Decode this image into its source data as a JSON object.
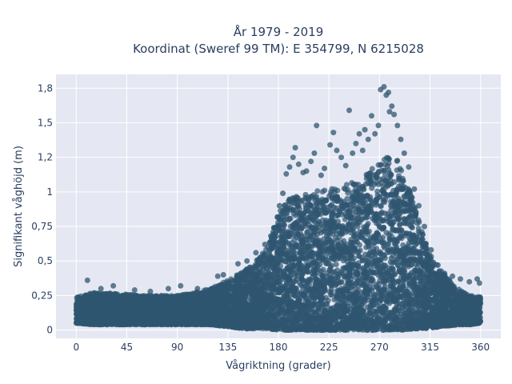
{
  "chart_data": {
    "type": "scatter",
    "title": "År 1979 - 2019",
    "subtitle": "Koordinat (Sweref 99 TM): E 354799, N 6215028",
    "xlabel": "Vågriktning (grader)",
    "ylabel": "Signifikant våghöjd (m)",
    "xlim": [
      -18,
      378
    ],
    "ylim": [
      -0.06,
      1.85
    ],
    "xticks": [
      0,
      45,
      90,
      135,
      180,
      225,
      270,
      315,
      360
    ],
    "xtick_labels": [
      "0",
      "45",
      "90",
      "135",
      "180",
      "225",
      "270",
      "315",
      "360"
    ],
    "yticks": [
      0,
      0.25,
      0.5,
      0.75,
      1,
      1.25,
      1.5,
      1.75
    ],
    "ytick_labels": [
      "0",
      "0,25",
      "0,5",
      "0,75",
      "1",
      "1,2",
      "1,5",
      "1,8"
    ],
    "grid": true,
    "marker_color": "#2f5670",
    "plot_bg": "#e5e8f2",
    "grid_color": "#ffffff",
    "envelope": {
      "x": [
        0,
        15,
        30,
        45,
        60,
        75,
        90,
        105,
        120,
        130,
        140,
        150,
        160,
        170,
        180,
        190,
        200,
        210,
        220,
        230,
        240,
        250,
        260,
        270,
        280,
        285,
        290,
        300,
        310,
        320,
        330,
        340,
        350,
        360
      ],
      "y_min": [
        0.05,
        0.04,
        0.04,
        0.04,
        0.04,
        0.04,
        0.04,
        0.04,
        0.04,
        0.03,
        0.02,
        0.01,
        0.01,
        0.01,
        0.0,
        0.0,
        0.0,
        0.0,
        0.0,
        0.0,
        0.0,
        0.0,
        0.0,
        0.0,
        0.0,
        0.0,
        0.0,
        0.01,
        0.01,
        0.02,
        0.03,
        0.04,
        0.04,
        0.05
      ],
      "y_max": [
        0.24,
        0.27,
        0.27,
        0.26,
        0.25,
        0.25,
        0.25,
        0.27,
        0.3,
        0.34,
        0.38,
        0.44,
        0.5,
        0.6,
        0.85,
        0.95,
        0.98,
        1.0,
        1.02,
        1.03,
        1.05,
        1.08,
        1.15,
        1.2,
        1.3,
        1.25,
        1.15,
        0.95,
        0.65,
        0.48,
        0.38,
        0.3,
        0.25,
        0.24
      ]
    },
    "outliers": [
      {
        "x": 10,
        "y": 0.36
      },
      {
        "x": 22,
        "y": 0.3
      },
      {
        "x": 33,
        "y": 0.32
      },
      {
        "x": 52,
        "y": 0.29
      },
      {
        "x": 66,
        "y": 0.28
      },
      {
        "x": 82,
        "y": 0.3
      },
      {
        "x": 93,
        "y": 0.32
      },
      {
        "x": 108,
        "y": 0.3
      },
      {
        "x": 126,
        "y": 0.39
      },
      {
        "x": 131,
        "y": 0.4
      },
      {
        "x": 144,
        "y": 0.48
      },
      {
        "x": 152,
        "y": 0.5
      },
      {
        "x": 160,
        "y": 0.56
      },
      {
        "x": 168,
        "y": 0.62
      },
      {
        "x": 176,
        "y": 0.74
      },
      {
        "x": 181,
        "y": 0.9
      },
      {
        "x": 184,
        "y": 0.99
      },
      {
        "x": 187,
        "y": 1.13
      },
      {
        "x": 190,
        "y": 1.18
      },
      {
        "x": 193,
        "y": 1.25
      },
      {
        "x": 195,
        "y": 1.32
      },
      {
        "x": 198,
        "y": 1.2
      },
      {
        "x": 202,
        "y": 1.14
      },
      {
        "x": 205,
        "y": 1.15
      },
      {
        "x": 209,
        "y": 1.22
      },
      {
        "x": 212,
        "y": 1.28
      },
      {
        "x": 214,
        "y": 1.48
      },
      {
        "x": 218,
        "y": 1.12
      },
      {
        "x": 221,
        "y": 1.17
      },
      {
        "x": 226,
        "y": 1.34
      },
      {
        "x": 229,
        "y": 1.43
      },
      {
        "x": 232,
        "y": 1.3
      },
      {
        "x": 236,
        "y": 1.25
      },
      {
        "x": 240,
        "y": 1.19
      },
      {
        "x": 243,
        "y": 1.59
      },
      {
        "x": 246,
        "y": 1.28
      },
      {
        "x": 249,
        "y": 1.35
      },
      {
        "x": 252,
        "y": 1.42
      },
      {
        "x": 255,
        "y": 1.3
      },
      {
        "x": 257,
        "y": 1.45
      },
      {
        "x": 260,
        "y": 1.38
      },
      {
        "x": 263,
        "y": 1.55
      },
      {
        "x": 266,
        "y": 1.42
      },
      {
        "x": 269,
        "y": 1.48
      },
      {
        "x": 271,
        "y": 1.74
      },
      {
        "x": 274,
        "y": 1.76
      },
      {
        "x": 276,
        "y": 1.7
      },
      {
        "x": 278,
        "y": 1.72
      },
      {
        "x": 279,
        "y": 1.58
      },
      {
        "x": 281,
        "y": 1.62
      },
      {
        "x": 283,
        "y": 1.56
      },
      {
        "x": 286,
        "y": 1.48
      },
      {
        "x": 289,
        "y": 1.38
      },
      {
        "x": 292,
        "y": 1.28
      },
      {
        "x": 296,
        "y": 1.18
      },
      {
        "x": 301,
        "y": 1.02
      },
      {
        "x": 305,
        "y": 0.9
      },
      {
        "x": 310,
        "y": 0.75
      },
      {
        "x": 316,
        "y": 0.58
      },
      {
        "x": 322,
        "y": 0.47
      },
      {
        "x": 328,
        "y": 0.41
      },
      {
        "x": 335,
        "y": 0.39
      },
      {
        "x": 342,
        "y": 0.37
      },
      {
        "x": 350,
        "y": 0.35
      },
      {
        "x": 357,
        "y": 0.37
      },
      {
        "x": 359,
        "y": 0.34
      }
    ]
  }
}
